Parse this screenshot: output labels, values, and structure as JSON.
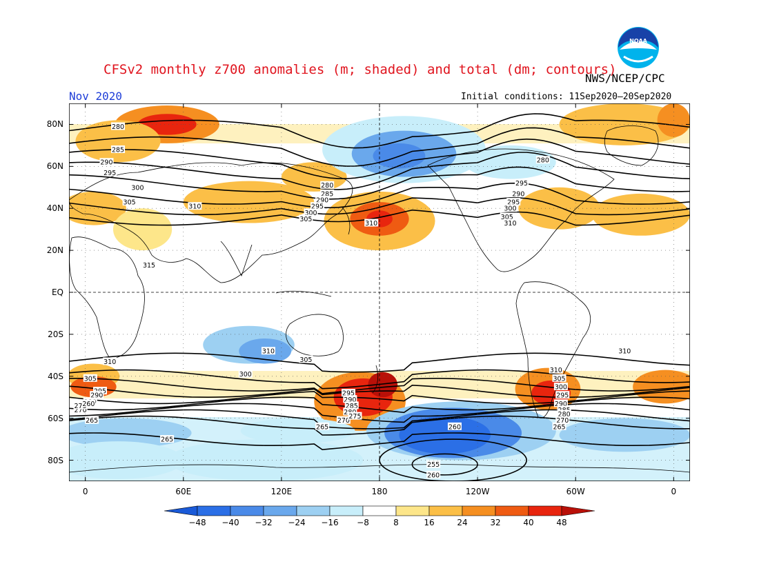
{
  "title": "CFSv2 monthly z700 anomalies (m; shaded) and total (dm; contours)",
  "agency": "NWS/NCEP/CPC",
  "month": "Nov 2020",
  "initial_conditions": "Initial conditions: 11Sep2020–20Sep2020",
  "logo": {
    "text": "NOAA",
    "icon": "noaa-logo-icon",
    "colors": [
      "#00b3ec",
      "#1842a8"
    ]
  },
  "map": {
    "lat_labels": [
      "80N",
      "60N",
      "40N",
      "20N",
      "EQ",
      "20S",
      "40S",
      "60S",
      "80S"
    ],
    "lat_values": [
      80,
      60,
      40,
      20,
      0,
      -20,
      -40,
      -60,
      -80
    ],
    "lon_labels": [
      "0",
      "60E",
      "120E",
      "180",
      "120W",
      "60W",
      "0"
    ],
    "lon_values": [
      0,
      60,
      120,
      180,
      240,
      300,
      360
    ],
    "lat_range": [
      -90,
      90
    ],
    "lon_range": [
      -10,
      370
    ],
    "contour_labels": [
      {
        "t": "280",
        "lon": 20,
        "lat": 79
      },
      {
        "t": "285",
        "lon": 20,
        "lat": 68
      },
      {
        "t": "290",
        "lon": 13,
        "lat": 62
      },
      {
        "t": "295",
        "lon": 15,
        "lat": 57
      },
      {
        "t": "300",
        "lon": 32,
        "lat": 50
      },
      {
        "t": "305",
        "lon": 27,
        "lat": 43
      },
      {
        "t": "310",
        "lon": 67,
        "lat": 41
      },
      {
        "t": "315",
        "lon": 39,
        "lat": 13
      },
      {
        "t": "280",
        "lon": 148,
        "lat": 51
      },
      {
        "t": "285",
        "lon": 148,
        "lat": 47
      },
      {
        "t": "290",
        "lon": 145,
        "lat": 44
      },
      {
        "t": "295",
        "lon": 142,
        "lat": 41
      },
      {
        "t": "300",
        "lon": 138,
        "lat": 38
      },
      {
        "t": "305",
        "lon": 135,
        "lat": 35
      },
      {
        "t": "310",
        "lon": 175,
        "lat": 33
      },
      {
        "t": "280",
        "lon": 280,
        "lat": 63
      },
      {
        "t": "295",
        "lon": 267,
        "lat": 52
      },
      {
        "t": "290",
        "lon": 265,
        "lat": 47
      },
      {
        "t": "295",
        "lon": 262,
        "lat": 43
      },
      {
        "t": "300",
        "lon": 260,
        "lat": 40
      },
      {
        "t": "305",
        "lon": 258,
        "lat": 36
      },
      {
        "t": "310",
        "lon": 260,
        "lat": 33
      },
      {
        "t": "310",
        "lon": 15,
        "lat": -33
      },
      {
        "t": "305",
        "lon": 3,
        "lat": -41
      },
      {
        "t": "295",
        "lon": 9,
        "lat": -47
      },
      {
        "t": "290",
        "lon": 7,
        "lat": -49
      },
      {
        "t": "280",
        "lon": 3,
        "lat": -52
      },
      {
        "t": "270",
        "lon": -3,
        "lat": -56
      },
      {
        "t": "265",
        "lon": 4,
        "lat": -61
      },
      {
        "t": "275",
        "lon": -3,
        "lat": -54
      },
      {
        "t": "260",
        "lon": 2,
        "lat": -53
      },
      {
        "t": "265",
        "lon": 50,
        "lat": -70
      },
      {
        "t": "310",
        "lon": 112,
        "lat": -28
      },
      {
        "t": "300",
        "lon": 98,
        "lat": -39
      },
      {
        "t": "305",
        "lon": 135,
        "lat": -32
      },
      {
        "t": "295",
        "lon": 161,
        "lat": -48
      },
      {
        "t": "290",
        "lon": 162,
        "lat": -51
      },
      {
        "t": "285",
        "lon": 163,
        "lat": -54
      },
      {
        "t": "280",
        "lon": 162,
        "lat": -57
      },
      {
        "t": "270",
        "lon": 158,
        "lat": -61
      },
      {
        "t": "275",
        "lon": 165,
        "lat": -59
      },
      {
        "t": "265",
        "lon": 145,
        "lat": -64
      },
      {
        "t": "260",
        "lon": 226,
        "lat": -64
      },
      {
        "t": "255",
        "lon": 213,
        "lat": -82
      },
      {
        "t": "260",
        "lon": 213,
        "lat": -87
      },
      {
        "t": "310",
        "lon": 288,
        "lat": -37
      },
      {
        "t": "310",
        "lon": 330,
        "lat": -28
      },
      {
        "t": "305",
        "lon": 290,
        "lat": -41
      },
      {
        "t": "300",
        "lon": 291,
        "lat": -45
      },
      {
        "t": "295",
        "lon": 292,
        "lat": -49
      },
      {
        "t": "290",
        "lon": 291,
        "lat": -53
      },
      {
        "t": "285",
        "lon": 293,
        "lat": -56
      },
      {
        "t": "280",
        "lon": 293,
        "lat": -58
      },
      {
        "t": "270",
        "lon": 292,
        "lat": -61
      },
      {
        "t": "265",
        "lon": 290,
        "lat": -64
      }
    ],
    "anomaly_patches": [
      {
        "lon": 50,
        "lat": 80,
        "rx": 32,
        "ry": 9,
        "v": 24
      },
      {
        "lon": 50,
        "lat": 80,
        "rx": 18,
        "ry": 5,
        "v": 40
      },
      {
        "lon": 20,
        "lat": 72,
        "rx": 26,
        "ry": 10,
        "v": 16
      },
      {
        "lon": 5,
        "lat": 40,
        "rx": 20,
        "ry": 8,
        "v": 16
      },
      {
        "lon": 35,
        "lat": 30,
        "rx": 18,
        "ry": 10,
        "v": 8
      },
      {
        "lon": 100,
        "lat": 43,
        "rx": 40,
        "ry": 10,
        "v": 16
      },
      {
        "lon": 140,
        "lat": 55,
        "rx": 20,
        "ry": 7,
        "v": 16
      },
      {
        "lon": 180,
        "lat": 34,
        "rx": 34,
        "ry": 14,
        "v": 16
      },
      {
        "lon": 180,
        "lat": 35,
        "rx": 18,
        "ry": 8,
        "v": 32
      },
      {
        "lon": 180,
        "lat": 35,
        "rx": 8,
        "ry": 4,
        "v": 40
      },
      {
        "lon": 195,
        "lat": 68,
        "rx": 50,
        "ry": 16,
        "v": -8
      },
      {
        "lon": 195,
        "lat": 66,
        "rx": 32,
        "ry": 11,
        "v": -24
      },
      {
        "lon": 192,
        "lat": 65,
        "rx": 16,
        "ry": 6,
        "v": -32
      },
      {
        "lon": 260,
        "lat": 62,
        "rx": 28,
        "ry": 8,
        "v": -8
      },
      {
        "lon": 290,
        "lat": 40,
        "rx": 25,
        "ry": 10,
        "v": 16
      },
      {
        "lon": 340,
        "lat": 37,
        "rx": 30,
        "ry": 10,
        "v": 16
      },
      {
        "lon": 330,
        "lat": 80,
        "rx": 40,
        "ry": 10,
        "v": 16
      },
      {
        "lon": 360,
        "lat": 82,
        "rx": 10,
        "ry": 8,
        "v": 24
      },
      {
        "lon": 5,
        "lat": -40,
        "rx": 16,
        "ry": 6,
        "v": 16
      },
      {
        "lon": 5,
        "lat": -45,
        "rx": 14,
        "ry": 5,
        "v": 32
      },
      {
        "lon": 100,
        "lat": -25,
        "rx": 28,
        "ry": 9,
        "v": -16
      },
      {
        "lon": 110,
        "lat": -28,
        "rx": 16,
        "ry": 6,
        "v": -24
      },
      {
        "lon": 168,
        "lat": -52,
        "rx": 28,
        "ry": 14,
        "v": 24
      },
      {
        "lon": 170,
        "lat": -50,
        "rx": 18,
        "ry": 9,
        "v": 40
      },
      {
        "lon": 182,
        "lat": -44,
        "rx": 9,
        "ry": 6,
        "v": 48
      },
      {
        "lon": 283,
        "lat": -46,
        "rx": 20,
        "ry": 10,
        "v": 24
      },
      {
        "lon": 285,
        "lat": -48,
        "rx": 12,
        "ry": 6,
        "v": 40
      },
      {
        "lon": 355,
        "lat": -45,
        "rx": 20,
        "ry": 8,
        "v": 24
      },
      {
        "lon": 230,
        "lat": -66,
        "rx": 58,
        "ry": 14,
        "v": -16
      },
      {
        "lon": 225,
        "lat": -67,
        "rx": 42,
        "ry": 12,
        "v": -32
      },
      {
        "lon": 220,
        "lat": -68,
        "rx": 28,
        "ry": 9,
        "v": -40
      },
      {
        "lon": 25,
        "lat": -67,
        "rx": 40,
        "ry": 7,
        "v": -16
      },
      {
        "lon": 130,
        "lat": -66,
        "rx": 35,
        "ry": 6,
        "v": -8
      },
      {
        "lon": 330,
        "lat": -68,
        "rx": 40,
        "ry": 8,
        "v": -16
      },
      {
        "lon": 110,
        "lat": -80,
        "rx": 60,
        "ry": 10,
        "v": -8
      },
      {
        "lon": 20,
        "lat": -80,
        "rx": 40,
        "ry": 9,
        "v": -8
      }
    ]
  },
  "colorbar": {
    "labels": [
      "−48",
      "−40",
      "−32",
      "−24",
      "−16",
      "−8",
      "8",
      "16",
      "24",
      "32",
      "40",
      "48"
    ],
    "colors": [
      "#1a5ad8",
      "#2b6fe6",
      "#4a8ae8",
      "#6aa8ec",
      "#9dd0f2",
      "#c8eefa",
      "#ffffff",
      "#fde68a",
      "#fbbf47",
      "#f58f21",
      "#ef5b12",
      "#e8250e",
      "#b91008"
    ],
    "levels": [
      -48,
      -40,
      -32,
      -24,
      -16,
      -8,
      8,
      16,
      24,
      32,
      40,
      48
    ]
  }
}
